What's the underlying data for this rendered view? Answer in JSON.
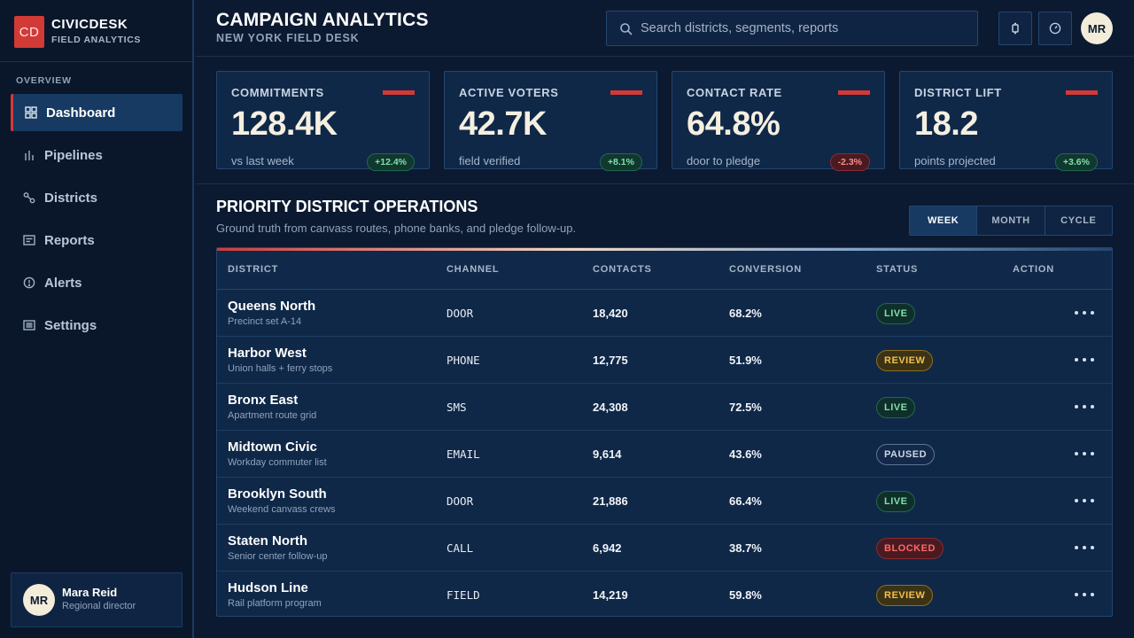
{
  "brand": {
    "logo": "CD",
    "name": "CIVICDESK",
    "subtitle": "FIELD ANALYTICS"
  },
  "sidebar": {
    "section_label": "OVERVIEW",
    "items": [
      {
        "label": "Dashboard",
        "icon": "grid-icon",
        "active": true
      },
      {
        "label": "Pipelines",
        "icon": "bar-chart-icon",
        "active": false
      },
      {
        "label": "Districts",
        "icon": "route-icon",
        "active": false
      },
      {
        "label": "Reports",
        "icon": "report-icon",
        "active": false
      },
      {
        "label": "Alerts",
        "icon": "alert-icon",
        "active": false
      },
      {
        "label": "Settings",
        "icon": "settings-list-icon",
        "active": false
      }
    ],
    "user": {
      "initials": "MR",
      "name": "Mara Reid",
      "role": "Regional director"
    }
  },
  "header": {
    "title": "CAMPAIGN ANALYTICS",
    "subtitle": "NEW YORK FIELD DESK",
    "search_placeholder": "Search districts, segments, reports",
    "avatar_initials": "MR"
  },
  "kpis": [
    {
      "label": "COMMITMENTS",
      "value": "128.4K",
      "caption": "vs last week",
      "delta": "+12.4%",
      "trend": "up"
    },
    {
      "label": "ACTIVE VOTERS",
      "value": "42.7K",
      "caption": "field verified",
      "delta": "+8.1%",
      "trend": "up"
    },
    {
      "label": "CONTACT RATE",
      "value": "64.8%",
      "caption": "door to pledge",
      "delta": "-2.3%",
      "trend": "down"
    },
    {
      "label": "DISTRICT LIFT",
      "value": "18.2",
      "caption": "points projected",
      "delta": "+3.6%",
      "trend": "up"
    }
  ],
  "section": {
    "title": "PRIORITY DISTRICT OPERATIONS",
    "description": "Ground truth from canvass routes, phone banks, and pledge follow-up.",
    "ranges": [
      "WEEK",
      "MONTH",
      "CYCLE"
    ],
    "active_range": "WEEK"
  },
  "table": {
    "columns": [
      "DISTRICT",
      "CHANNEL",
      "CONTACTS",
      "CONVERSION",
      "STATUS",
      "ACTION"
    ],
    "rows": [
      {
        "district": "Queens North",
        "sub": "Precinct set A-14",
        "channel": "DOOR",
        "contacts": "18,420",
        "conversion": "68.2%",
        "status": "LIVE"
      },
      {
        "district": "Harbor West",
        "sub": "Union halls + ferry stops",
        "channel": "PHONE",
        "contacts": "12,775",
        "conversion": "51.9%",
        "status": "REVIEW"
      },
      {
        "district": "Bronx East",
        "sub": "Apartment route grid",
        "channel": "SMS",
        "contacts": "24,308",
        "conversion": "72.5%",
        "status": "LIVE"
      },
      {
        "district": "Midtown Civic",
        "sub": "Workday commuter list",
        "channel": "EMAIL",
        "contacts": "9,614",
        "conversion": "43.6%",
        "status": "PAUSED"
      },
      {
        "district": "Brooklyn South",
        "sub": "Weekend canvass crews",
        "channel": "DOOR",
        "contacts": "21,886",
        "conversion": "66.4%",
        "status": "LIVE"
      },
      {
        "district": "Staten North",
        "sub": "Senior center follow-up",
        "channel": "CALL",
        "contacts": "6,942",
        "conversion": "38.7%",
        "status": "BLOCKED"
      },
      {
        "district": "Hudson Line",
        "sub": "Rail platform program",
        "channel": "FIELD",
        "contacts": "14,219",
        "conversion": "59.8%",
        "status": "REVIEW"
      }
    ]
  },
  "colors": {
    "background": "#0b1a30",
    "accent": "#d23a37",
    "card": "#0f2848",
    "live": "#7fe0a8",
    "review": "#f2c14a",
    "blocked": "#ff6b62"
  }
}
